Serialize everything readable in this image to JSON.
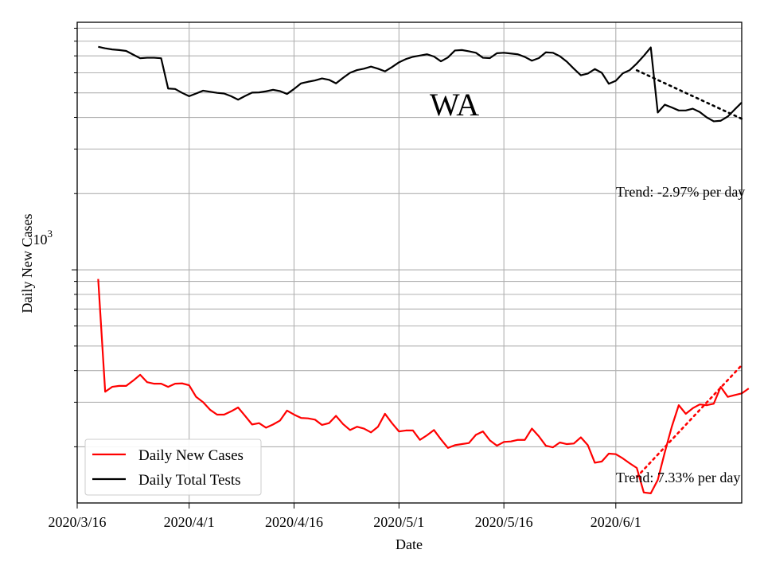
{
  "chart_data": {
    "type": "line",
    "title": "WA",
    "xlabel": "Date",
    "ylabel": "Daily New Cases",
    "yscale": "log",
    "ylim": [
      120,
      9500
    ],
    "ytick_label": {
      "base": "10",
      "exponent": "3"
    },
    "xticks": [
      {
        "label": "2020/3/16",
        "day": 0
      },
      {
        "label": "2020/4/1",
        "day": 16
      },
      {
        "label": "2020/4/16",
        "day": 31
      },
      {
        "label": "2020/5/1",
        "day": 46
      },
      {
        "label": "2020/5/16",
        "day": 61
      },
      {
        "label": "2020/6/1",
        "day": 77
      }
    ],
    "xlim": [
      0,
      95
    ],
    "series": [
      {
        "name": "Daily New Cases",
        "color": "#ff0000",
        "x_start": 3,
        "values": [
          920,
          330,
          345,
          348,
          348,
          365,
          385,
          360,
          355,
          355,
          345,
          355,
          356,
          350,
          315,
          300,
          280,
          268,
          268,
          276,
          286,
          265,
          245,
          248,
          238,
          245,
          254,
          278,
          268,
          260,
          259,
          256,
          244,
          248,
          265,
          246,
          233,
          240,
          236,
          228,
          240,
          270,
          248,
          230,
          232,
          232,
          213,
          222,
          233,
          214,
          198,
          203,
          205,
          207,
          223,
          230,
          212,
          202,
          209,
          210,
          213,
          213,
          236,
          220,
          202,
          199,
          208,
          205,
          206,
          218,
          203,
          173,
          175,
          188,
          187,
          180,
          172,
          165,
          132,
          131,
          148,
          190,
          240,
          292,
          270,
          284,
          294,
          292,
          296,
          345,
          315,
          320,
          325,
          340
        ]
      },
      {
        "name": "Daily Total Tests",
        "color": "#000000",
        "x_start": 3,
        "values": [
          7600,
          7500,
          7420,
          7380,
          7320,
          7080,
          6850,
          6880,
          6880,
          6850,
          5200,
          5180,
          5000,
          4850,
          4970,
          5100,
          5050,
          5000,
          4970,
          4850,
          4700,
          4860,
          5010,
          5020,
          5070,
          5140,
          5080,
          4950,
          5180,
          5450,
          5530,
          5600,
          5700,
          5630,
          5450,
          5730,
          6000,
          6150,
          6230,
          6350,
          6230,
          6080,
          6320,
          6600,
          6800,
          6940,
          7020,
          7100,
          6960,
          6660,
          6900,
          7350,
          7380,
          7300,
          7200,
          6880,
          6860,
          7170,
          7200,
          7150,
          7100,
          6930,
          6700,
          6860,
          7230,
          7200,
          6980,
          6640,
          6230,
          5870,
          5960,
          6210,
          6000,
          5430,
          5580,
          5970,
          6150,
          6530,
          7000,
          7560,
          4180,
          4490,
          4380,
          4260,
          4260,
          4330,
          4200,
          4000,
          3860,
          3880,
          4030,
          4300,
          4580
        ]
      }
    ],
    "trends": [
      {
        "series": "Daily Total Tests",
        "color": "#000000",
        "x_start": 80,
        "y_start": 6140,
        "x_end": 95,
        "y_end": 3950
      },
      {
        "series": "Daily New Cases",
        "color": "#ff0000",
        "x_start": 80,
        "y_start": 152,
        "x_end": 95,
        "y_end": 420
      }
    ],
    "annotations": [
      {
        "text": "Trend: -2.97% per day",
        "series": "Daily Total Tests"
      },
      {
        "text": "Trend: 7.33% per day",
        "series": "Daily New Cases"
      }
    ],
    "legend": {
      "position": "lower-left",
      "entries": [
        {
          "label": "Daily New Cases",
          "color": "#ff0000"
        },
        {
          "label": "Daily Total Tests",
          "color": "#000000"
        }
      ]
    },
    "grid": true
  }
}
